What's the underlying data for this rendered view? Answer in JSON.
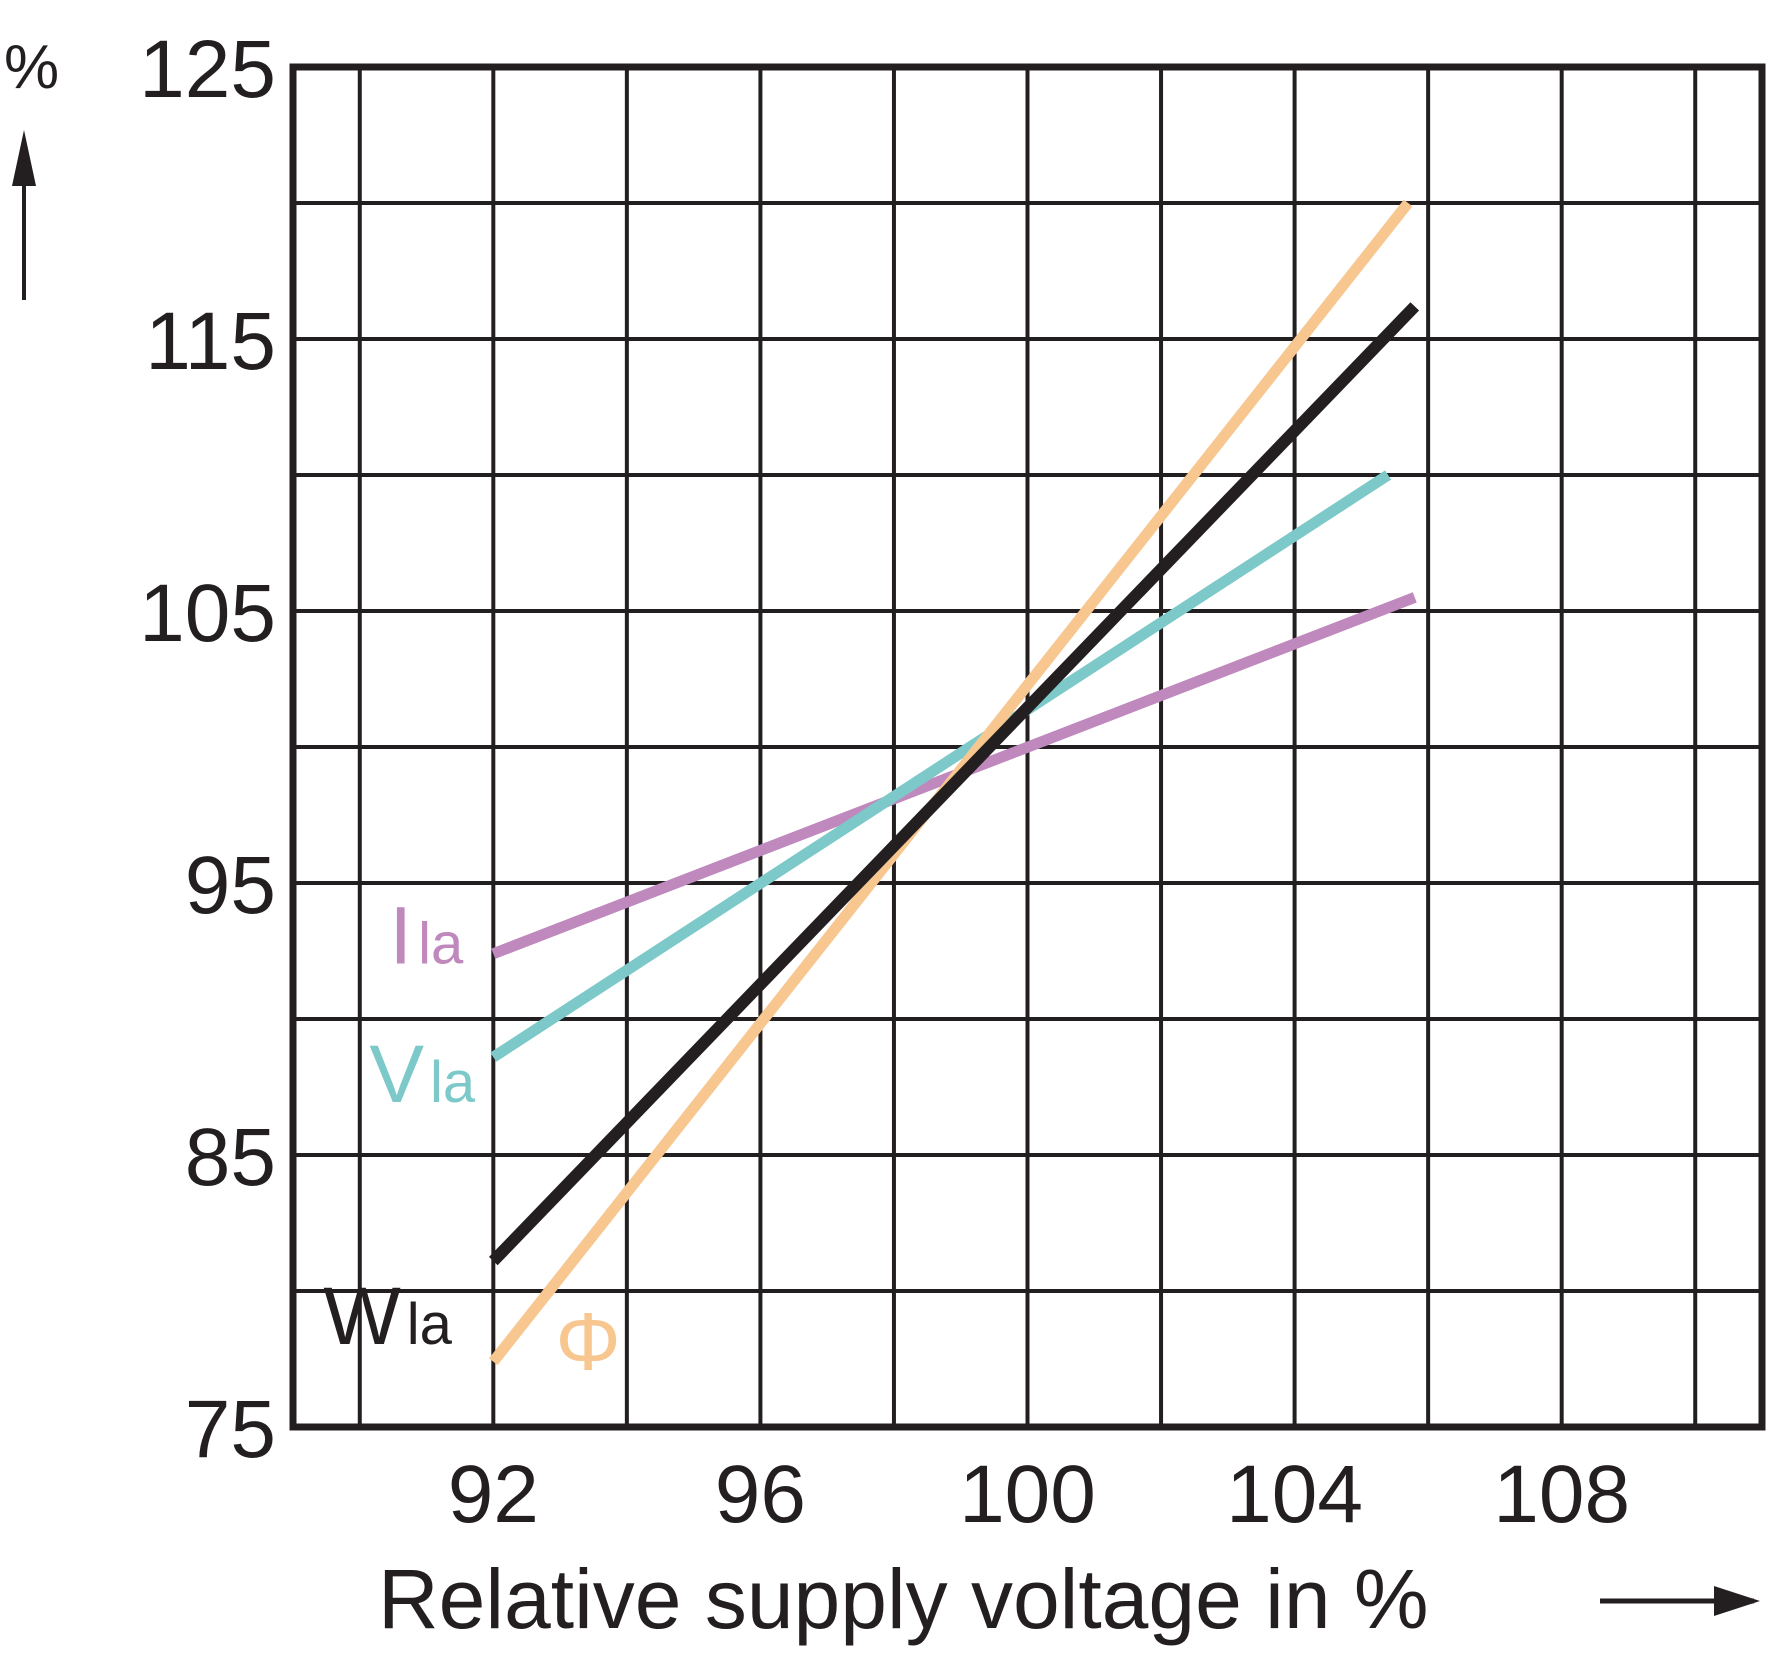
{
  "chart_data": {
    "type": "line",
    "xlabel": "Relative supply voltage in %",
    "ylabel": "%",
    "xlim": [
      89,
      111
    ],
    "ylim": [
      75,
      125
    ],
    "x_ticks": [
      92,
      96,
      100,
      104,
      108
    ],
    "y_ticks": [
      125,
      115,
      105,
      95,
      85,
      75
    ],
    "grid": true,
    "series": [
      {
        "name": "I",
        "label_main": "I",
        "label_sub": "la",
        "color": "#c089be",
        "x": [
          92,
          105.8
        ],
        "y": [
          92.4,
          105.5
        ]
      },
      {
        "name": "V",
        "label_main": "V",
        "label_sub": "la",
        "color": "#7dc9c9",
        "x": [
          92,
          105.4
        ],
        "y": [
          88.6,
          110.0
        ]
      },
      {
        "name": "Φ",
        "label_main": "Φ",
        "label_sub": "",
        "color": "#f8c790",
        "x": [
          92,
          105.7
        ],
        "y": [
          77.4,
          120.0
        ]
      },
      {
        "name": "W",
        "label_main": "W",
        "label_sub": "la",
        "color": "#231f20",
        "x": [
          92,
          105.8
        ],
        "y": [
          81.1,
          116.2
        ]
      }
    ]
  }
}
